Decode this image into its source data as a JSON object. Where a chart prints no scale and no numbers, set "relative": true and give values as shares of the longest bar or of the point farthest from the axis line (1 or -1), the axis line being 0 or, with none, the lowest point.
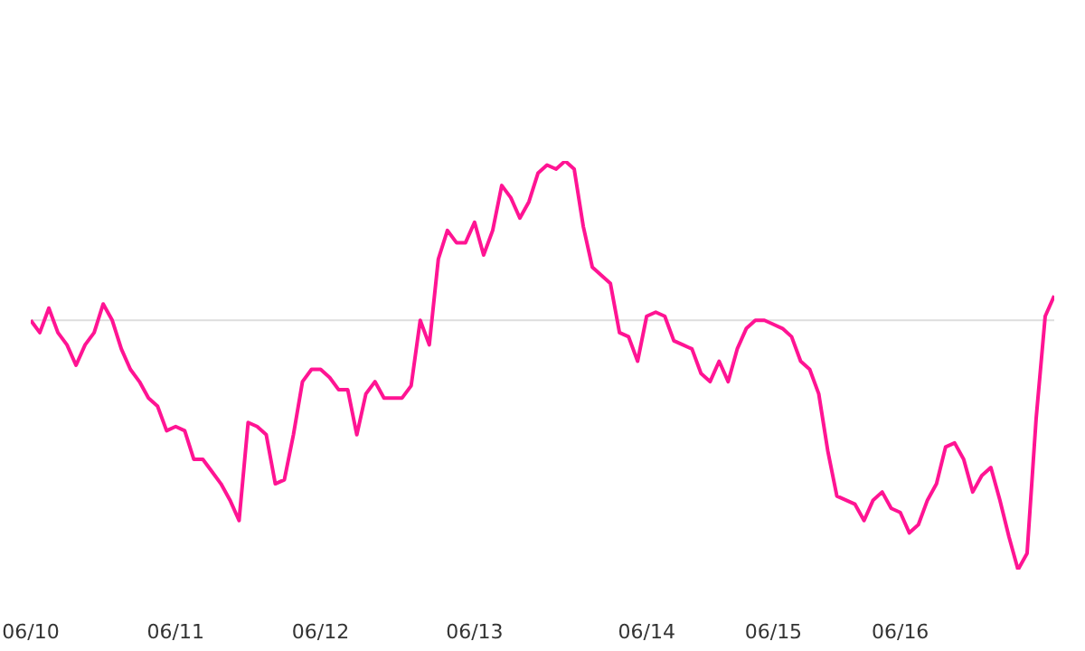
{
  "chart_data": {
    "type": "line",
    "relative": true,
    "color": "#ff1493",
    "grid": false,
    "legend": false,
    "categories": [
      "06/10",
      null,
      null,
      null,
      null,
      null,
      null,
      null,
      null,
      null,
      null,
      null,
      null,
      null,
      null,
      null,
      "06/11",
      null,
      null,
      null,
      null,
      null,
      null,
      null,
      null,
      null,
      null,
      null,
      null,
      null,
      null,
      null,
      "06/12",
      null,
      null,
      null,
      null,
      null,
      null,
      null,
      null,
      null,
      null,
      null,
      null,
      null,
      null,
      null,
      null,
      "06/13",
      null,
      null,
      null,
      null,
      null,
      null,
      null,
      null,
      null,
      null,
      null,
      null,
      null,
      null,
      null,
      null,
      null,
      null,
      "06/14",
      null,
      null,
      null,
      null,
      null,
      null,
      null,
      null,
      null,
      null,
      null,
      null,
      null,
      "06/15",
      null,
      null,
      null,
      null,
      null,
      null,
      null,
      null,
      null,
      null,
      null,
      null,
      null,
      "06/16",
      null,
      null,
      null,
      null,
      null,
      null,
      null,
      null,
      null,
      null,
      null,
      null,
      null,
      null,
      null,
      null,
      null
    ],
    "values": [
      0.61,
      0.58,
      0.64,
      0.58,
      0.55,
      0.5,
      0.55,
      0.58,
      0.65,
      0.61,
      0.54,
      0.49,
      0.46,
      0.42,
      0.4,
      0.34,
      0.35,
      0.34,
      0.27,
      0.27,
      0.24,
      0.21,
      0.17,
      0.12,
      0.36,
      0.35,
      0.33,
      0.21,
      0.22,
      0.33,
      0.46,
      0.49,
      0.49,
      0.47,
      0.44,
      0.44,
      0.33,
      0.43,
      0.46,
      0.42,
      0.42,
      0.42,
      0.45,
      0.61,
      0.55,
      0.76,
      0.83,
      0.8,
      0.8,
      0.85,
      0.77,
      0.83,
      0.94,
      0.91,
      0.86,
      0.9,
      0.97,
      0.99,
      0.98,
      1,
      0.98,
      0.84,
      0.74,
      0.72,
      0.7,
      0.58,
      0.57,
      0.51,
      0.62,
      0.63,
      0.62,
      0.56,
      0.55,
      0.54,
      0.48,
      0.46,
      0.51,
      0.46,
      0.54,
      0.59,
      0.61,
      0.61,
      0.6,
      0.59,
      0.57,
      0.51,
      0.49,
      0.43,
      0.29,
      0.18,
      0.17,
      0.16,
      0.12,
      0.17,
      0.19,
      0.15,
      0.14,
      0.09,
      0.11,
      0.17,
      0.21,
      0.3,
      0.31,
      0.27,
      0.19,
      0.23,
      0.25,
      0.17,
      0.08,
      0,
      0.04,
      0.37,
      0.62,
      0.67
    ],
    "ref_lines": [
      {
        "axis": "y",
        "value": 0.61,
        "color": "#dddddd"
      }
    ]
  }
}
